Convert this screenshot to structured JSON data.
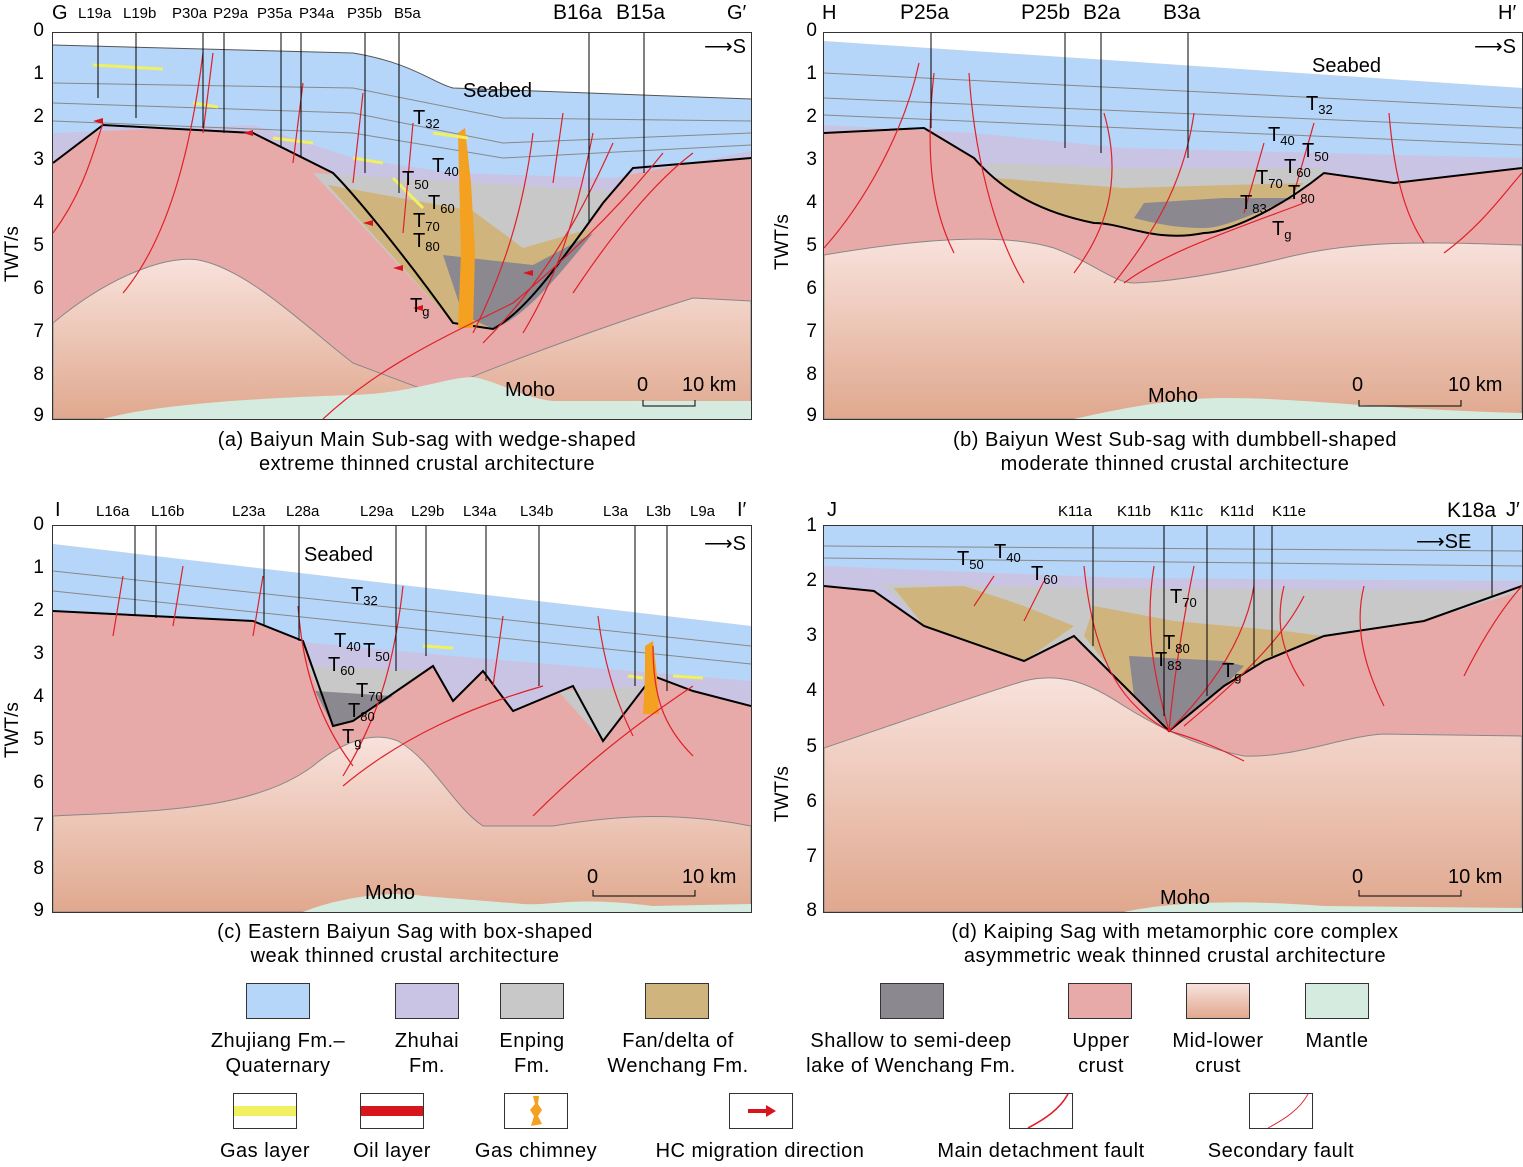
{
  "colors": {
    "zhujiang": "#b5d6f8",
    "zhuhai": "#c9c4e4",
    "enping": "#c8c8c8",
    "fan_delta": "#cfb47e",
    "lake": "#8c8890",
    "upper_crust": "#e8aaa8",
    "mid_lower_top": "#f8e0da",
    "mid_lower_bottom": "#e2a890",
    "mantle": "#d5ebe0",
    "gas": "#f0f060",
    "oil": "#d8141c",
    "chimney": "#f4a020",
    "fault": "#e0202a"
  },
  "axis_label": "TWT/s",
  "direction_s": "S",
  "direction_se": "SE",
  "scale": {
    "zero": "0",
    "ten": "10 km"
  },
  "moho": "Moho",
  "seabed": "Seabed",
  "panels": {
    "a": {
      "start": "G",
      "end": "G′",
      "wells": [
        "L19a",
        "L19b",
        "P30a",
        "P29a",
        "P35a",
        "P34a",
        "P35b",
        "B5a",
        "B16a",
        "B15a"
      ],
      "ticks": [
        "0",
        "1",
        "2",
        "3",
        "4",
        "5",
        "6",
        "7",
        "8",
        "9"
      ],
      "caption1": "(a) Baiyun Main Sub-sag with wedge-shaped",
      "caption2": "extreme thinned crustal architecture"
    },
    "b": {
      "start": "H",
      "end": "H′",
      "wells": [
        "P25a",
        "P25b",
        "B2a",
        "B3a"
      ],
      "ticks": [
        "0",
        "1",
        "2",
        "3",
        "4",
        "5",
        "6",
        "7",
        "8",
        "9"
      ],
      "caption1": "(b) Baiyun West Sub-sag with dumbbell-shaped",
      "caption2": "moderate thinned crustal architecture"
    },
    "c": {
      "start": "I",
      "end": "I′",
      "wells": [
        "L16a",
        "L16b",
        "L23a",
        "L28a",
        "L29a",
        "L29b",
        "L34a",
        "L34b",
        "L3a",
        "L3b",
        "L9a"
      ],
      "ticks": [
        "0",
        "1",
        "2",
        "3",
        "4",
        "5",
        "6",
        "7",
        "8",
        "9"
      ],
      "caption1": "(c) Eastern Baiyun Sag with box-shaped",
      "caption2": "weak thinned crustal architecture"
    },
    "d": {
      "start": "J",
      "end": "J′",
      "wells": [
        "K11a",
        "K11b",
        "K11c",
        "K11d",
        "K11e",
        "K18a"
      ],
      "ticks": [
        "1",
        "2",
        "3",
        "4",
        "5",
        "6",
        "7",
        "8"
      ],
      "caption1": "(d) Kaiping Sag with metamorphic core complex",
      "caption2": "asymmetric weak thinned crustal architecture"
    }
  },
  "horizons": {
    "T": "T",
    "s32": "32",
    "s40": "40",
    "s50": "50",
    "s60": "60",
    "s70": "70",
    "s80": "80",
    "s83": "83",
    "sg": "g"
  },
  "legend": {
    "row1": [
      {
        "l1": "Zhujiang Fm.–",
        "l2": "Quaternary"
      },
      {
        "l1": "Zhuhai",
        "l2": "Fm."
      },
      {
        "l1": "Enping",
        "l2": "Fm."
      },
      {
        "l1": "Fan/delta of",
        "l2": "Wenchang Fm."
      },
      {
        "l1": "Shallow to semi-deep",
        "l2": "lake of Wenchang Fm."
      },
      {
        "l1": "Upper",
        "l2": "crust"
      },
      {
        "l1": "Mid-lower",
        "l2": "crust"
      },
      {
        "l1": "Mantle",
        "l2": ""
      }
    ],
    "row2": [
      "Gas layer",
      "Oil layer",
      "Gas chimney",
      "HC migration direction",
      "Main detachment fault",
      "Secondary fault"
    ]
  }
}
